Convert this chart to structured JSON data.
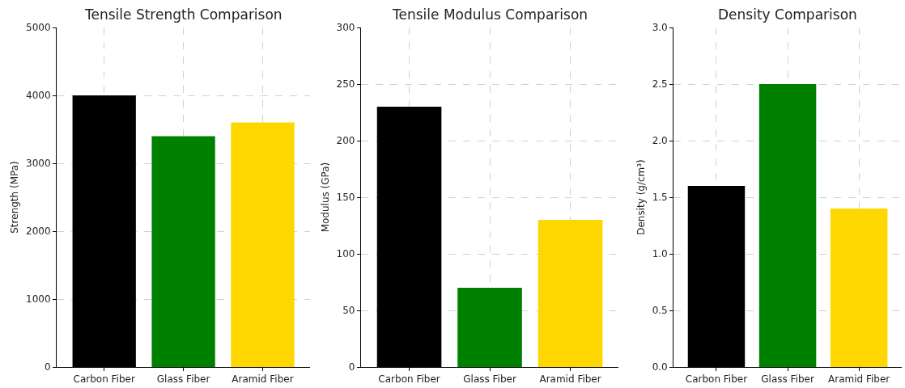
{
  "chart_data": [
    {
      "type": "bar",
      "title": "Tensile Strength Comparison",
      "ylabel": "Strength (MPa)",
      "categories": [
        "Carbon Fiber",
        "Glass Fiber",
        "Aramid Fiber"
      ],
      "values": [
        4000,
        3400,
        3600
      ],
      "colors": [
        "#000000",
        "#008000",
        "#ffd700"
      ],
      "ylim": [
        0,
        5000
      ],
      "yticks": [
        0,
        1000,
        2000,
        3000,
        4000,
        5000
      ],
      "grid": true
    },
    {
      "type": "bar",
      "title": "Tensile Modulus Comparison",
      "ylabel": "Modulus (GPa)",
      "categories": [
        "Carbon Fiber",
        "Glass Fiber",
        "Aramid Fiber"
      ],
      "values": [
        230,
        70,
        130
      ],
      "colors": [
        "#000000",
        "#008000",
        "#ffd700"
      ],
      "ylim": [
        0,
        300
      ],
      "yticks": [
        0,
        50,
        100,
        150,
        200,
        250,
        300
      ],
      "grid": true
    },
    {
      "type": "bar",
      "title": "Density Comparison",
      "ylabel": "Density (g/cm³)",
      "categories": [
        "Carbon Fiber",
        "Glass Fiber",
        "Aramid Fiber"
      ],
      "values": [
        1.6,
        2.5,
        1.4
      ],
      "colors": [
        "#000000",
        "#008000",
        "#ffd700"
      ],
      "ylim": [
        0,
        3.0
      ],
      "yticks": [
        {
          "value": 0,
          "label": "0.0"
        },
        {
          "value": 0.5,
          "label": "0.5"
        },
        {
          "value": 1.0,
          "label": "1.0"
        },
        {
          "value": 1.5,
          "label": "1.5"
        },
        {
          "value": 2.0,
          "label": "2.0"
        },
        {
          "value": 2.5,
          "label": "2.5"
        },
        {
          "value": 3.0,
          "label": "3.0"
        }
      ],
      "grid": true
    }
  ]
}
